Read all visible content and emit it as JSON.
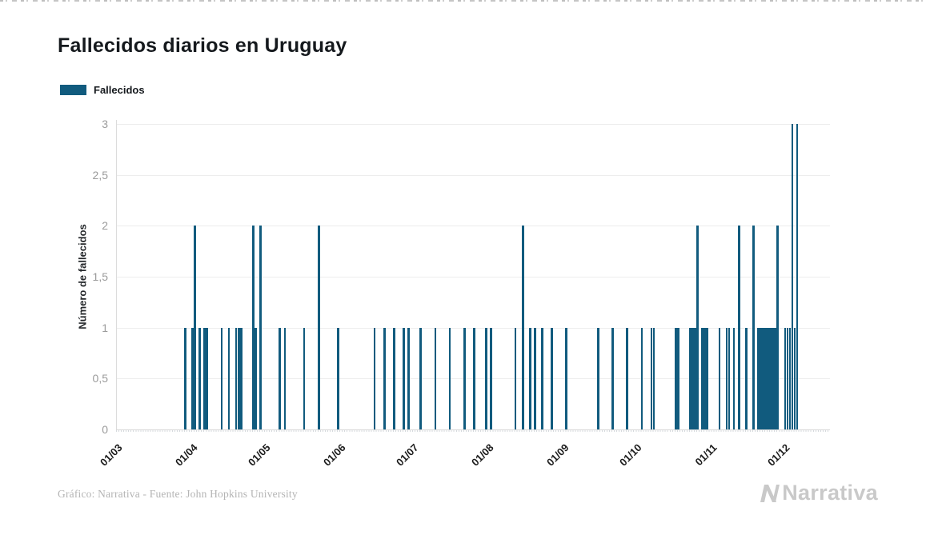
{
  "title": "Fallecidos diarios en Uruguay",
  "legend": {
    "label": "Fallecidos",
    "color": "#115b7e"
  },
  "footer": {
    "source": "Gráfico: Narrativa - Fuente: John Hopkins University",
    "brand": "Narrativa",
    "brand_color": "#c9c9c9"
  },
  "chart_data": {
    "type": "bar",
    "title": "Fallecidos diarios en Uruguay",
    "xlabel": "",
    "ylabel": "Número de fallecidos",
    "ylim": [
      0,
      3
    ],
    "grid": true,
    "legend_position": "top-left",
    "bar_color": "#115b7e",
    "yticks": [
      {
        "v": 0,
        "label": "0"
      },
      {
        "v": 0.5,
        "label": "0,5"
      },
      {
        "v": 1,
        "label": "1"
      },
      {
        "v": 1.5,
        "label": "1,5"
      },
      {
        "v": 2,
        "label": "2"
      },
      {
        "v": 2.5,
        "label": "2,5"
      },
      {
        "v": 3,
        "label": "3"
      }
    ],
    "x_months": [
      {
        "label": "01/03",
        "day": 0
      },
      {
        "label": "01/04",
        "day": 31
      },
      {
        "label": "01/05",
        "day": 61
      },
      {
        "label": "01/06",
        "day": 92
      },
      {
        "label": "01/07",
        "day": 122
      },
      {
        "label": "01/08",
        "day": 153
      },
      {
        "label": "01/09",
        "day": 184
      },
      {
        "label": "01/10",
        "day": 214
      },
      {
        "label": "01/11",
        "day": 245
      },
      {
        "label": "01/12",
        "day": 275
      }
    ],
    "total_days": 294,
    "series": [
      {
        "date": "29/03",
        "day": 28,
        "value": 1
      },
      {
        "date": "01/04",
        "day": 31,
        "value": 1
      },
      {
        "date": "02/04",
        "day": 32,
        "value": 2
      },
      {
        "date": "04/04",
        "day": 34,
        "value": 1
      },
      {
        "date": "06/04",
        "day": 36,
        "value": 1
      },
      {
        "date": "07/04",
        "day": 37,
        "value": 1
      },
      {
        "date": "13/04",
        "day": 43,
        "value": 1
      },
      {
        "date": "16/04",
        "day": 46,
        "value": 1
      },
      {
        "date": "19/04",
        "day": 49,
        "value": 1
      },
      {
        "date": "20/04",
        "day": 50,
        "value": 1
      },
      {
        "date": "21/04",
        "day": 51,
        "value": 1
      },
      {
        "date": "26/04",
        "day": 56,
        "value": 2
      },
      {
        "date": "27/04",
        "day": 57,
        "value": 1
      },
      {
        "date": "29/04",
        "day": 59,
        "value": 2
      },
      {
        "date": "07/05",
        "day": 67,
        "value": 1
      },
      {
        "date": "09/05",
        "day": 69,
        "value": 1
      },
      {
        "date": "17/05",
        "day": 77,
        "value": 1
      },
      {
        "date": "23/05",
        "day": 83,
        "value": 2
      },
      {
        "date": "31/05",
        "day": 91,
        "value": 1
      },
      {
        "date": "15/06",
        "day": 106,
        "value": 1
      },
      {
        "date": "19/06",
        "day": 110,
        "value": 1
      },
      {
        "date": "23/06",
        "day": 114,
        "value": 1
      },
      {
        "date": "27/06",
        "day": 118,
        "value": 1
      },
      {
        "date": "29/06",
        "day": 120,
        "value": 1
      },
      {
        "date": "04/07",
        "day": 125,
        "value": 1
      },
      {
        "date": "10/07",
        "day": 131,
        "value": 1
      },
      {
        "date": "16/07",
        "day": 137,
        "value": 1
      },
      {
        "date": "22/07",
        "day": 143,
        "value": 1
      },
      {
        "date": "26/07",
        "day": 147,
        "value": 1
      },
      {
        "date": "31/07",
        "day": 152,
        "value": 1
      },
      {
        "date": "02/08",
        "day": 154,
        "value": 1
      },
      {
        "date": "12/08",
        "day": 164,
        "value": 1
      },
      {
        "date": "15/08",
        "day": 167,
        "value": 2
      },
      {
        "date": "18/08",
        "day": 170,
        "value": 1
      },
      {
        "date": "20/08",
        "day": 172,
        "value": 1
      },
      {
        "date": "23/08",
        "day": 175,
        "value": 1
      },
      {
        "date": "27/08",
        "day": 179,
        "value": 1
      },
      {
        "date": "02/09",
        "day": 185,
        "value": 1
      },
      {
        "date": "15/09",
        "day": 198,
        "value": 1
      },
      {
        "date": "21/09",
        "day": 204,
        "value": 1
      },
      {
        "date": "27/09",
        "day": 210,
        "value": 1
      },
      {
        "date": "03/10",
        "day": 216,
        "value": 1
      },
      {
        "date": "07/10",
        "day": 220,
        "value": 1
      },
      {
        "date": "08/10",
        "day": 221,
        "value": 1
      },
      {
        "date": "17/10",
        "day": 230,
        "value": 1
      },
      {
        "date": "18/10",
        "day": 231,
        "value": 1
      },
      {
        "date": "23/10",
        "day": 236,
        "value": 1
      },
      {
        "date": "24/10",
        "day": 237,
        "value": 1
      },
      {
        "date": "25/10",
        "day": 238,
        "value": 1
      },
      {
        "date": "26/10",
        "day": 239,
        "value": 2
      },
      {
        "date": "28/10",
        "day": 241,
        "value": 1
      },
      {
        "date": "29/10",
        "day": 242,
        "value": 1
      },
      {
        "date": "30/10",
        "day": 243,
        "value": 1
      },
      {
        "date": "04/11",
        "day": 248,
        "value": 1
      },
      {
        "date": "07/11",
        "day": 251,
        "value": 1
      },
      {
        "date": "08/11",
        "day": 252,
        "value": 1
      },
      {
        "date": "10/11",
        "day": 254,
        "value": 1
      },
      {
        "date": "12/11",
        "day": 256,
        "value": 2
      },
      {
        "date": "15/11",
        "day": 259,
        "value": 1
      },
      {
        "date": "18/11",
        "day": 262,
        "value": 2
      },
      {
        "date": "20/11",
        "day": 264,
        "value": 1
      },
      {
        "date": "21/11",
        "day": 265,
        "value": 1
      },
      {
        "date": "22/11",
        "day": 266,
        "value": 1
      },
      {
        "date": "23/11",
        "day": 267,
        "value": 1
      },
      {
        "date": "24/11",
        "day": 268,
        "value": 1
      },
      {
        "date": "25/11",
        "day": 269,
        "value": 1
      },
      {
        "date": "26/11",
        "day": 270,
        "value": 1
      },
      {
        "date": "27/11",
        "day": 271,
        "value": 1
      },
      {
        "date": "28/11",
        "day": 272,
        "value": 2
      },
      {
        "date": "01/12",
        "day": 275,
        "value": 1
      },
      {
        "date": "02/12",
        "day": 276,
        "value": 1
      },
      {
        "date": "03/12",
        "day": 277,
        "value": 1
      },
      {
        "date": "04/12",
        "day": 278,
        "value": 3
      },
      {
        "date": "05/12",
        "day": 279,
        "value": 1
      },
      {
        "date": "06/12",
        "day": 280,
        "value": 3
      }
    ]
  }
}
